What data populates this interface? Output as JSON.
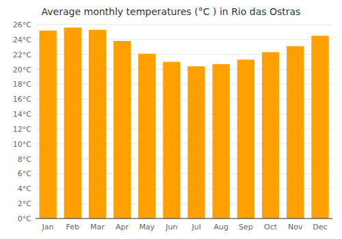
{
  "chart_data": {
    "type": "bar",
    "title": "Average monthly temperatures (°C ) in Rio das Ostras",
    "categories": [
      "Jan",
      "Feb",
      "Mar",
      "Apr",
      "May",
      "Jun",
      "Jul",
      "Aug",
      "Sep",
      "Oct",
      "Nov",
      "Dec"
    ],
    "values": [
      25.2,
      25.6,
      25.3,
      23.8,
      22.1,
      21.0,
      20.4,
      20.7,
      21.3,
      22.3,
      23.1,
      24.5
    ],
    "color": "#FFA000",
    "ylim": [
      0,
      26
    ],
    "yticks": [
      {
        "value": 0,
        "label": "0°C"
      },
      {
        "value": 2,
        "label": "2°C"
      },
      {
        "value": 4,
        "label": "4°C"
      },
      {
        "value": 6,
        "label": "6°C"
      },
      {
        "value": 8,
        "label": "8°C"
      },
      {
        "value": 10,
        "label": "10°C"
      },
      {
        "value": 12,
        "label": "12°C"
      },
      {
        "value": 14,
        "label": "14°C"
      },
      {
        "value": 16,
        "label": "16°C"
      },
      {
        "value": 18,
        "label": "18°C"
      },
      {
        "value": 20,
        "label": "20°C"
      },
      {
        "value": 22,
        "label": "22°C"
      },
      {
        "value": 24,
        "label": "24°C"
      },
      {
        "value": 26,
        "label": "26°C"
      }
    ],
    "grid": true
  }
}
